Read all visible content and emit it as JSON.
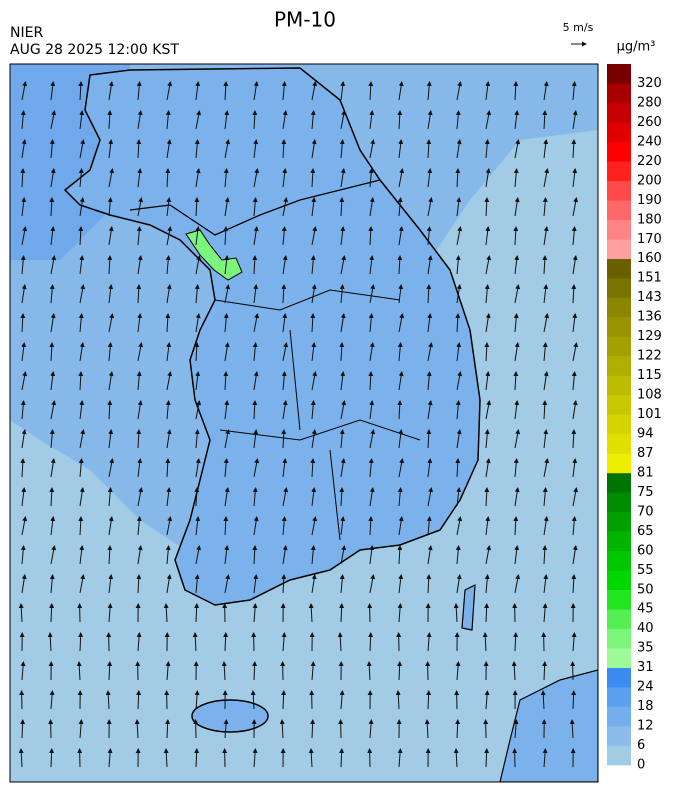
{
  "header": {
    "title": "PM-10",
    "source": "NIER",
    "datetime": "AUG 28 2025 12:00 KST",
    "wind_scale": "5 m/s"
  },
  "legend": {
    "unit": "μg/m³",
    "ticks": [
      0,
      6,
      12,
      18,
      24,
      31,
      35,
      40,
      45,
      50,
      55,
      60,
      65,
      70,
      75,
      81,
      87,
      94,
      101,
      108,
      115,
      122,
      129,
      136,
      143,
      151,
      160,
      170,
      180,
      190,
      200,
      220,
      240,
      260,
      280,
      320
    ],
    "colors": [
      "#a2cbe6",
      "#8cbdea",
      "#74aeeb",
      "#5c9fee",
      "#3a8cf0",
      "#9dfb97",
      "#7cf57c",
      "#55ee55",
      "#22e622",
      "#00d800",
      "#00c800",
      "#00b400",
      "#00a000",
      "#008c00",
      "#007400",
      "#eeee00",
      "#e0e000",
      "#d4d400",
      "#c8c800",
      "#bcbc00",
      "#b0ae00",
      "#a4a000",
      "#989400",
      "#8a8600",
      "#7a7400",
      "#6a6000",
      "#ffa0a0",
      "#ff8484",
      "#ff6868",
      "#ff4a4a",
      "#ff2020",
      "#ff0000",
      "#e00000",
      "#c60000",
      "#a80000",
      "#7a0000"
    ]
  }
}
